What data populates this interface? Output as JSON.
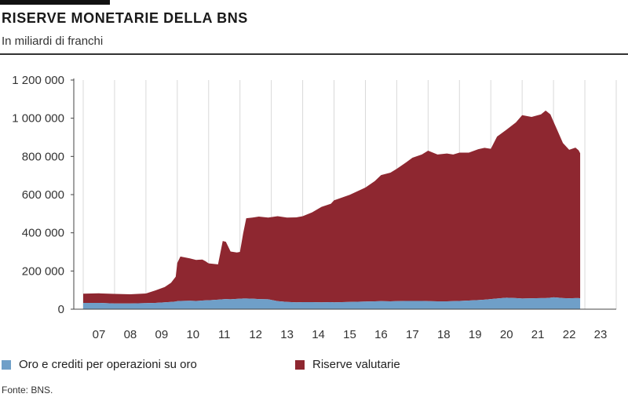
{
  "header": {
    "title": "RISERVE MONETARIE DELLA BNS",
    "subtitle": "In miliardi di franchi"
  },
  "footer": {
    "source": "Fonte: BNS."
  },
  "colors": {
    "gold": "#6f9fc8",
    "fx": "#8e2730",
    "grid": "#d9d9d9",
    "axis": "#444444"
  },
  "chart_data": {
    "type": "area",
    "stacked": true,
    "title": "RISERVE MONETARIE DELLA BNS",
    "subtitle": "In miliardi di franchi",
    "xlabel": "",
    "ylabel": "",
    "xlim": [
      2007.0,
      2024.0
    ],
    "ylim": [
      0,
      1200000
    ],
    "y_ticks": [
      0,
      200000,
      400000,
      600000,
      800000,
      1000000,
      1200000
    ],
    "y_tick_labels": [
      "0",
      "200 000",
      "400 000",
      "600 000",
      "800 000",
      "1 000 000",
      "1 200 000"
    ],
    "x_ticks": [
      2007,
      2008,
      2009,
      2010,
      2011,
      2012,
      2013,
      2014,
      2015,
      2016,
      2017,
      2018,
      2019,
      2020,
      2021,
      2022,
      2023
    ],
    "x_tick_labels": [
      "07",
      "08",
      "09",
      "10",
      "11",
      "12",
      "13",
      "14",
      "15",
      "16",
      "17",
      "18",
      "19",
      "20",
      "21",
      "22",
      "23"
    ],
    "grid": "vertical",
    "legend_position": "bottom",
    "x": [
      2007.0,
      2007.5,
      2008.0,
      2008.5,
      2009.0,
      2009.3,
      2009.6,
      2009.8,
      2009.95,
      2010.0,
      2010.1,
      2010.4,
      2010.6,
      2010.8,
      2010.9,
      2011.0,
      2011.3,
      2011.45,
      2011.55,
      2011.7,
      2011.9,
      2012.0,
      2012.1,
      2012.2,
      2012.4,
      2012.6,
      2012.9,
      2013.2,
      2013.5,
      2013.8,
      2014.0,
      2014.3,
      2014.6,
      2014.9,
      2015.0,
      2015.5,
      2016.0,
      2016.3,
      2016.5,
      2016.8,
      2017.0,
      2017.3,
      2017.5,
      2017.8,
      2018.0,
      2018.3,
      2018.6,
      2018.8,
      2019.0,
      2019.3,
      2019.6,
      2019.8,
      2020.0,
      2020.2,
      2020.5,
      2020.8,
      2021.0,
      2021.3,
      2021.6,
      2021.75,
      2021.9,
      2022.0,
      2022.1,
      2022.3,
      2022.5,
      2022.7,
      2022.8,
      2022.85
    ],
    "series": [
      {
        "name": "Oro e crediti per operazioni su oro",
        "color": "#6f9fc8",
        "values": [
          33000,
          33000,
          30000,
          30000,
          32000,
          33000,
          36000,
          38000,
          40000,
          42000,
          43000,
          44000,
          43000,
          45000,
          46000,
          47000,
          50000,
          52000,
          53000,
          52000,
          54000,
          55000,
          56000,
          56000,
          55000,
          53000,
          52000,
          42000,
          38000,
          36000,
          37000,
          37000,
          36000,
          37000,
          36000,
          38000,
          40000,
          41000,
          42000,
          41000,
          42000,
          43000,
          43000,
          43000,
          42000,
          41000,
          41000,
          42000,
          43000,
          45000,
          48000,
          50000,
          53000,
          56000,
          60000,
          58000,
          56000,
          57000,
          58000,
          58000,
          60000,
          62000,
          61000,
          58000,
          57000,
          58000,
          58000,
          57000
        ]
      },
      {
        "name": "Riserve valutarie",
        "color": "#8e2730",
        "values": [
          48000,
          50000,
          50000,
          48000,
          50000,
          65000,
          80000,
          100000,
          130000,
          200000,
          233000,
          222000,
          215000,
          215000,
          205000,
          193000,
          185000,
          305000,
          300000,
          250000,
          243000,
          245000,
          340000,
          420000,
          425000,
          432000,
          428000,
          445000,
          442000,
          445000,
          450000,
          470000,
          500000,
          515000,
          534000,
          561000,
          597000,
          630000,
          660000,
          674000,
          693000,
          726000,
          750000,
          767000,
          788000,
          769000,
          774000,
          768000,
          777000,
          775000,
          790000,
          795000,
          787000,
          848000,
          880000,
          920000,
          960000,
          950000,
          962000,
          982000,
          960000,
          920000,
          884000,
          812000,
          778000,
          788000,
          774000,
          760000
        ]
      }
    ]
  }
}
